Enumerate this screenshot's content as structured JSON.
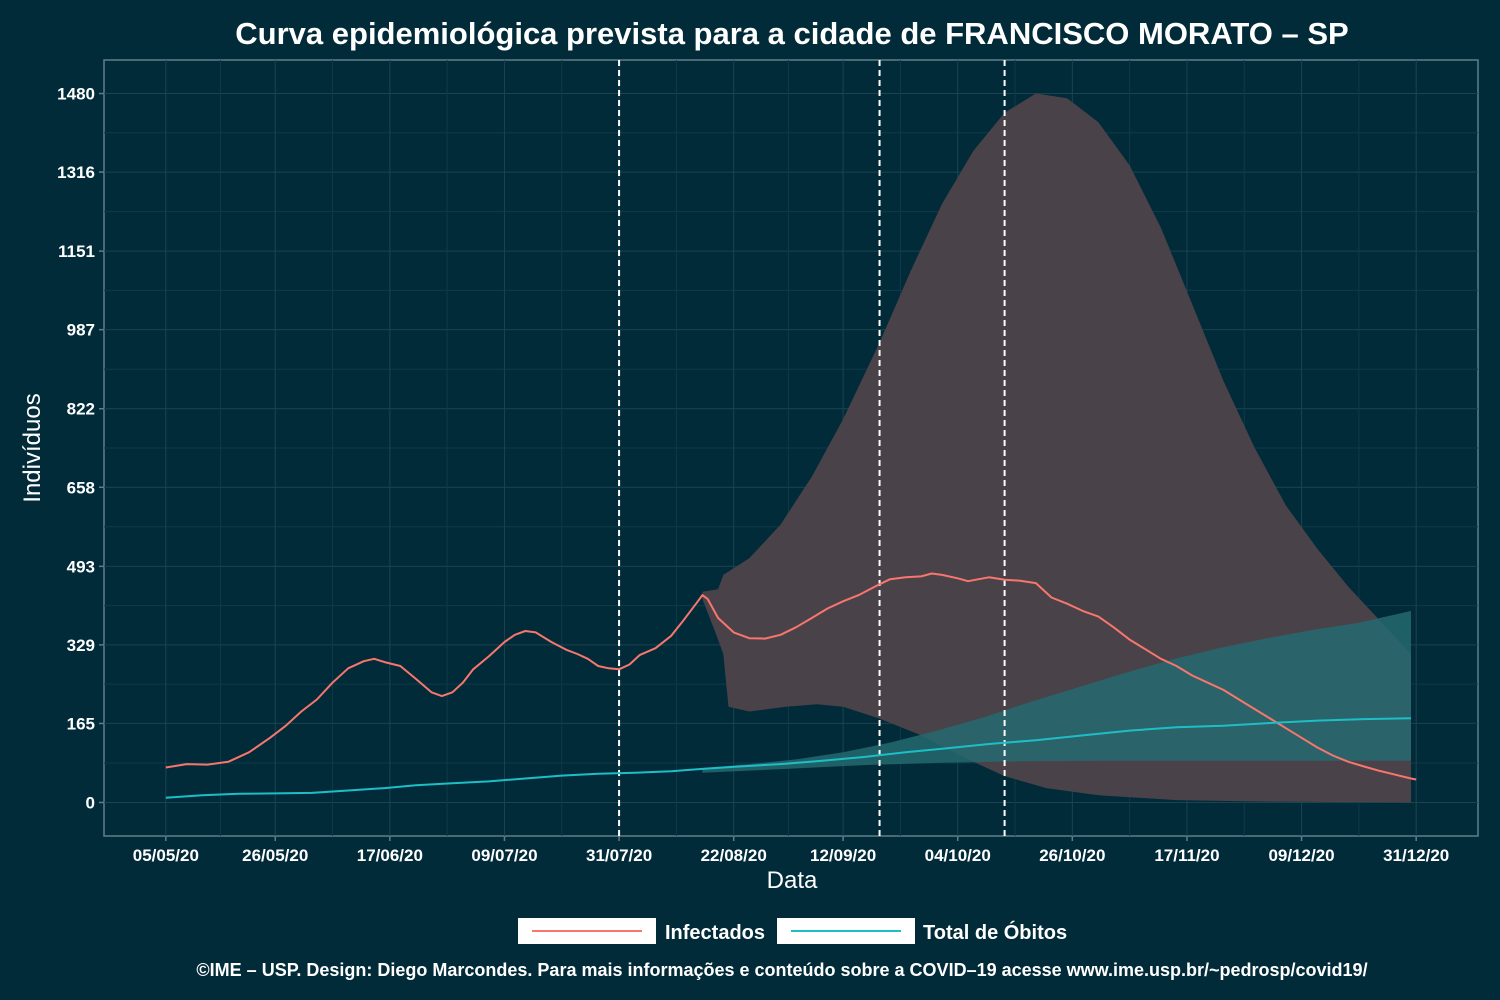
{
  "chart_data": {
    "type": "line",
    "title": "Curva epidemiológica prevista para a cidade de FRANCISCO MORATO – SP",
    "xlabel": "Data",
    "ylabel": "Indivíduos",
    "x_axis": {
      "start": "2020-05-05",
      "end": "2020-12-31",
      "tick_labels": [
        "05/05/20",
        "26/05/20",
        "17/06/20",
        "09/07/20",
        "31/07/20",
        "22/08/20",
        "12/09/20",
        "04/10/20",
        "26/10/20",
        "17/11/20",
        "09/12/20",
        "31/12/20"
      ]
    },
    "y_axis": {
      "ylim": [
        -70,
        1550
      ],
      "ticks": [
        0,
        165,
        329,
        493,
        658,
        822,
        987,
        1151,
        1316,
        1480
      ]
    },
    "grid": true,
    "legend_position": "bottom",
    "vertical_markers": [
      "2020-07-31",
      "2020-09-19",
      "2020-10-13"
    ],
    "series": [
      {
        "name": "Infectados",
        "color": "#f8766d",
        "points": [
          [
            "2020-05-05",
            73
          ],
          [
            "2020-05-09",
            80
          ],
          [
            "2020-05-13",
            79
          ],
          [
            "2020-05-17",
            85
          ],
          [
            "2020-05-21",
            105
          ],
          [
            "2020-05-25",
            135
          ],
          [
            "2020-05-28",
            160
          ],
          [
            "2020-05-31",
            190
          ],
          [
            "2020-06-03",
            215
          ],
          [
            "2020-06-06",
            250
          ],
          [
            "2020-06-09",
            280
          ],
          [
            "2020-06-12",
            295
          ],
          [
            "2020-06-14",
            300
          ],
          [
            "2020-06-16",
            293
          ],
          [
            "2020-06-19",
            285
          ],
          [
            "2020-06-22",
            258
          ],
          [
            "2020-06-25",
            230
          ],
          [
            "2020-06-27",
            222
          ],
          [
            "2020-06-29",
            230
          ],
          [
            "2020-07-01",
            250
          ],
          [
            "2020-07-03",
            278
          ],
          [
            "2020-07-06",
            305
          ],
          [
            "2020-07-09",
            335
          ],
          [
            "2020-07-11",
            350
          ],
          [
            "2020-07-13",
            358
          ],
          [
            "2020-07-15",
            355
          ],
          [
            "2020-07-18",
            335
          ],
          [
            "2020-07-21",
            318
          ],
          [
            "2020-07-23",
            310
          ],
          [
            "2020-07-25",
            300
          ],
          [
            "2020-07-27",
            285
          ],
          [
            "2020-07-29",
            280
          ],
          [
            "2020-07-31",
            278
          ],
          [
            "2020-08-02",
            288
          ],
          [
            "2020-08-04",
            308
          ],
          [
            "2020-08-07",
            322
          ],
          [
            "2020-08-10",
            348
          ],
          [
            "2020-08-12",
            375
          ],
          [
            "2020-08-15",
            418
          ],
          [
            "2020-08-16",
            433
          ],
          [
            "2020-08-17",
            425
          ],
          [
            "2020-08-19",
            385
          ],
          [
            "2020-08-22",
            355
          ],
          [
            "2020-08-25",
            343
          ],
          [
            "2020-08-28",
            342
          ],
          [
            "2020-08-31",
            350
          ],
          [
            "2020-09-03",
            366
          ],
          [
            "2020-09-06",
            385
          ],
          [
            "2020-09-09",
            405
          ],
          [
            "2020-09-12",
            420
          ],
          [
            "2020-09-15",
            433
          ],
          [
            "2020-09-18",
            450
          ],
          [
            "2020-09-21",
            466
          ],
          [
            "2020-09-24",
            470
          ],
          [
            "2020-09-27",
            472
          ],
          [
            "2020-09-29",
            478
          ],
          [
            "2020-10-01",
            475
          ],
          [
            "2020-10-04",
            468
          ],
          [
            "2020-10-06",
            462
          ],
          [
            "2020-10-08",
            466
          ],
          [
            "2020-10-10",
            470
          ],
          [
            "2020-10-13",
            465
          ],
          [
            "2020-10-16",
            463
          ],
          [
            "2020-10-19",
            458
          ],
          [
            "2020-10-22",
            428
          ],
          [
            "2020-10-25",
            415
          ],
          [
            "2020-10-28",
            400
          ],
          [
            "2020-10-31",
            388
          ],
          [
            "2020-11-03",
            365
          ],
          [
            "2020-11-06",
            340
          ],
          [
            "2020-11-09",
            320
          ],
          [
            "2020-11-12",
            300
          ],
          [
            "2020-11-15",
            285
          ],
          [
            "2020-11-18",
            265
          ],
          [
            "2020-11-21",
            250
          ],
          [
            "2020-11-24",
            235
          ],
          [
            "2020-11-27",
            215
          ],
          [
            "2020-11-30",
            195
          ],
          [
            "2020-12-03",
            175
          ],
          [
            "2020-12-06",
            155
          ],
          [
            "2020-12-09",
            135
          ],
          [
            "2020-12-12",
            115
          ],
          [
            "2020-12-15",
            98
          ],
          [
            "2020-12-18",
            85
          ],
          [
            "2020-12-21",
            75
          ],
          [
            "2020-12-24",
            66
          ],
          [
            "2020-12-27",
            58
          ],
          [
            "2020-12-30",
            50
          ],
          [
            "2020-12-31",
            48
          ]
        ],
        "band": {
          "color": "#4a4249",
          "upper": [
            [
              "2020-08-16",
              440
            ],
            [
              "2020-08-19",
              445
            ],
            [
              "2020-08-20",
              475
            ],
            [
              "2020-08-25",
              510
            ],
            [
              "2020-08-31",
              580
            ],
            [
              "2020-09-06",
              680
            ],
            [
              "2020-09-12",
              800
            ],
            [
              "2020-09-19",
              960
            ],
            [
              "2020-09-25",
              1110
            ],
            [
              "2020-10-01",
              1250
            ],
            [
              "2020-10-07",
              1360
            ],
            [
              "2020-10-13",
              1440
            ],
            [
              "2020-10-19",
              1480
            ],
            [
              "2020-10-25",
              1470
            ],
            [
              "2020-10-31",
              1420
            ],
            [
              "2020-11-06",
              1330
            ],
            [
              "2020-11-12",
              1200
            ],
            [
              "2020-11-18",
              1040
            ],
            [
              "2020-11-24",
              880
            ],
            [
              "2020-11-30",
              740
            ],
            [
              "2020-12-06",
              620
            ],
            [
              "2020-12-12",
              530
            ],
            [
              "2020-12-18",
              450
            ],
            [
              "2020-12-24",
              380
            ],
            [
              "2020-12-30",
              310
            ]
          ],
          "lower": [
            [
              "2020-08-16",
              425
            ],
            [
              "2020-08-19",
              340
            ],
            [
              "2020-08-20",
              310
            ],
            [
              "2020-08-21",
              200
            ],
            [
              "2020-08-25",
              190
            ],
            [
              "2020-09-01",
              200
            ],
            [
              "2020-09-07",
              205
            ],
            [
              "2020-09-12",
              200
            ],
            [
              "2020-09-19",
              175
            ],
            [
              "2020-09-27",
              140
            ],
            [
              "2020-10-05",
              95
            ],
            [
              "2020-10-13",
              55
            ],
            [
              "2020-10-21",
              30
            ],
            [
              "2020-10-31",
              15
            ],
            [
              "2020-11-15",
              5
            ],
            [
              "2020-12-01",
              2
            ],
            [
              "2020-12-30",
              0
            ]
          ]
        }
      },
      {
        "name": "Total de Óbitos",
        "color": "#1ebec7",
        "points": [
          [
            "2020-05-05",
            10
          ],
          [
            "2020-05-12",
            15
          ],
          [
            "2020-05-19",
            18
          ],
          [
            "2020-05-26",
            19
          ],
          [
            "2020-06-02",
            20
          ],
          [
            "2020-06-09",
            25
          ],
          [
            "2020-06-16",
            30
          ],
          [
            "2020-06-22",
            36
          ],
          [
            "2020-06-29",
            40
          ],
          [
            "2020-07-06",
            44
          ],
          [
            "2020-07-13",
            50
          ],
          [
            "2020-07-20",
            56
          ],
          [
            "2020-07-27",
            60
          ],
          [
            "2020-08-03",
            62
          ],
          [
            "2020-08-10",
            65
          ],
          [
            "2020-08-16",
            70
          ],
          [
            "2020-08-23",
            75
          ],
          [
            "2020-08-31",
            80
          ],
          [
            "2020-09-08",
            87
          ],
          [
            "2020-09-16",
            95
          ],
          [
            "2020-09-24",
            105
          ],
          [
            "2020-10-02",
            113
          ],
          [
            "2020-10-10",
            122
          ],
          [
            "2020-10-19",
            130
          ],
          [
            "2020-10-28",
            140
          ],
          [
            "2020-11-06",
            150
          ],
          [
            "2020-11-15",
            157
          ],
          [
            "2020-11-24",
            160
          ],
          [
            "2020-12-03",
            166
          ],
          [
            "2020-12-12",
            171
          ],
          [
            "2020-12-21",
            174
          ],
          [
            "2020-12-30",
            176
          ]
        ],
        "band": {
          "color": "#24686e",
          "upper": [
            [
              "2020-08-16",
              72
            ],
            [
              "2020-08-25",
              80
            ],
            [
              "2020-09-03",
              90
            ],
            [
              "2020-09-12",
              105
            ],
            [
              "2020-09-21",
              125
            ],
            [
              "2020-09-30",
              150
            ],
            [
              "2020-10-09",
              178
            ],
            [
              "2020-10-18",
              210
            ],
            [
              "2020-10-27",
              240
            ],
            [
              "2020-11-05",
              270
            ],
            [
              "2020-11-14",
              298
            ],
            [
              "2020-11-23",
              322
            ],
            [
              "2020-12-02",
              342
            ],
            [
              "2020-12-11",
              360
            ],
            [
              "2020-12-20",
              375
            ],
            [
              "2020-12-30",
              400
            ]
          ],
          "lower": [
            [
              "2020-08-16",
              62
            ],
            [
              "2020-09-01",
              70
            ],
            [
              "2020-09-16",
              78
            ],
            [
              "2020-10-01",
              83
            ],
            [
              "2020-10-16",
              86
            ],
            [
              "2020-11-01",
              87
            ],
            [
              "2020-12-01",
              87
            ],
            [
              "2020-12-30",
              87
            ]
          ]
        }
      }
    ]
  },
  "legend": {
    "items": [
      {
        "label": "Infectados",
        "color": "#f8766d"
      },
      {
        "label": "Total de Óbitos",
        "color": "#1ebec7"
      }
    ]
  },
  "footer": {
    "credit": "©IME – USP. Design: Diego Marcondes. Para mais informações e conteúdo sobre a COVID–19 acesse www.ime.usp.br/~pedrosp/covid19/"
  }
}
